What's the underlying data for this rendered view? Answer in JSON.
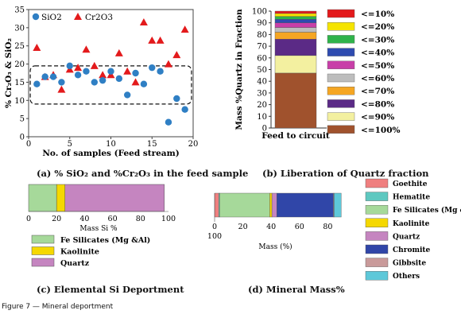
{
  "figure_caption": "Figure 7 — Mineral deportment",
  "captions": {
    "a": "(a) % SiO₂ and %Cr₂O₃ in the feed sample",
    "b": "(b) Liberation of Quartz fraction",
    "c": "(c) Elemental Si Deportment",
    "d": "(d) Mineral Mass%"
  },
  "colors": {
    "sio2": "#2f7fc4",
    "cr2o3": "#e31a1c",
    "goethite": "#ef7f7f",
    "hematite": "#5ec8c0",
    "fe_silicates": "#a6d99a",
    "kaolinite": "#f5d800",
    "quartz": "#c585c0",
    "chromite": "#3046a8",
    "gibbsite": "#c99a9a",
    "others": "#5ec8d9"
  },
  "chart_data": [
    {
      "id": "a",
      "type": "scatter",
      "xlabel": "No. of samples (Feed stream)",
      "ylabel": "% Cr₂O₃ & SiO₂",
      "xlim": [
        0,
        20
      ],
      "ylim": [
        0,
        35
      ],
      "xticks": [
        0,
        5,
        10,
        15,
        20
      ],
      "yticks": [
        0,
        5,
        10,
        15,
        20,
        25,
        30,
        35
      ],
      "legend_position": "top-left",
      "series": [
        {
          "name": "SiO2",
          "marker": "circle",
          "x": [
            1,
            2,
            3,
            4,
            5,
            6,
            7,
            8,
            9,
            10,
            11,
            12,
            13,
            14,
            15,
            16,
            17,
            18,
            19
          ],
          "y": [
            14.5,
            16.5,
            16.5,
            15,
            19.5,
            17,
            18,
            15,
            15.5,
            18,
            16,
            11.5,
            17.5,
            14.5,
            19,
            18,
            4,
            10.5,
            7.5
          ]
        },
        {
          "name": "Cr2O3",
          "marker": "triangle",
          "x": [
            1,
            2,
            3,
            4,
            5,
            6,
            7,
            8,
            9,
            10,
            11,
            12,
            13,
            14,
            15,
            16,
            17,
            18,
            19
          ],
          "y": [
            24.5,
            16.5,
            17,
            13,
            18.5,
            19,
            24,
            19.5,
            17,
            17,
            23,
            18,
            15,
            31.5,
            26.5,
            26.5,
            20,
            22.5,
            29.5
          ]
        }
      ],
      "annotation": "dashed box enclosing samples 1-19 between about 9 and 19 %"
    },
    {
      "id": "b",
      "type": "bar",
      "stacked": true,
      "categories": [
        "Feed to circuit"
      ],
      "ylabel": "Mass %Quartz in Fraction",
      "ylim": [
        0,
        100
      ],
      "yticks": [
        0,
        10,
        20,
        30,
        40,
        50,
        60,
        70,
        80,
        90,
        100
      ],
      "legend_position": "right",
      "series": [
        {
          "name": "<=100%",
          "values": [
            47
          ],
          "color": "#a0522d"
        },
        {
          "name": "<=90%",
          "values": [
            15
          ],
          "color": "#f3f0a0"
        },
        {
          "name": "<=80%",
          "values": [
            14
          ],
          "color": "#5b2a86"
        },
        {
          "name": "<=70%",
          "values": [
            6
          ],
          "color": "#f5a623"
        },
        {
          "name": "<=60%",
          "values": [
            4
          ],
          "color": "#bdbdbd"
        },
        {
          "name": "<=50%",
          "values": [
            4
          ],
          "color": "#c83fa8"
        },
        {
          "name": "<=40%",
          "values": [
            3
          ],
          "color": "#2e4bb0"
        },
        {
          "name": "<=30%",
          "values": [
            2.5
          ],
          "color": "#2fb34a"
        },
        {
          "name": "<=20%",
          "values": [
            2.5
          ],
          "color": "#f5e400"
        },
        {
          "name": "<=10%",
          "values": [
            2
          ],
          "color": "#e31a1c"
        }
      ]
    },
    {
      "id": "c",
      "type": "bar",
      "orientation": "horizontal",
      "stacked": true,
      "xlabel": "Mass Si %",
      "xlim": [
        0,
        100
      ],
      "xticks": [
        0,
        20,
        40,
        60,
        80,
        100
      ],
      "legend_position": "bottom",
      "series": [
        {
          "name": "Fe Silicates  (Mg &Al)",
          "values": [
            20
          ],
          "color": "#a6d99a"
        },
        {
          "name": "Kaolinite",
          "values": [
            6
          ],
          "color": "#f5d800"
        },
        {
          "name": "Quartz",
          "values": [
            71
          ],
          "color": "#c585c0"
        }
      ]
    },
    {
      "id": "d",
      "type": "bar",
      "orientation": "horizontal",
      "stacked": true,
      "xlabel": "Mass (%)",
      "xlim": [
        0,
        100
      ],
      "xticks": [
        0,
        20,
        40,
        60,
        80
      ],
      "xtick_extra_label": "100",
      "legend_position": "right",
      "series": [
        {
          "name": "Goethite",
          "values": [
            3
          ],
          "color": "#ef7f7f"
        },
        {
          "name": "Hematite",
          "values": [
            0.5
          ],
          "color": "#5ec8c0"
        },
        {
          "name": "Fe Silicates  (Mg &Al)",
          "values": [
            35.5
          ],
          "color": "#a6d99a"
        },
        {
          "name": "Kaolinite",
          "values": [
            1.5
          ],
          "color": "#f5d800"
        },
        {
          "name": "Quartz",
          "values": [
            3.5
          ],
          "color": "#c585c0"
        },
        {
          "name": "Chromite",
          "values": [
            40
          ],
          "color": "#3046a8"
        },
        {
          "name": "Gibbsite",
          "values": [
            0.5
          ],
          "color": "#c99a9a"
        },
        {
          "name": "Others",
          "values": [
            5
          ],
          "color": "#5ec8d9"
        }
      ]
    }
  ]
}
